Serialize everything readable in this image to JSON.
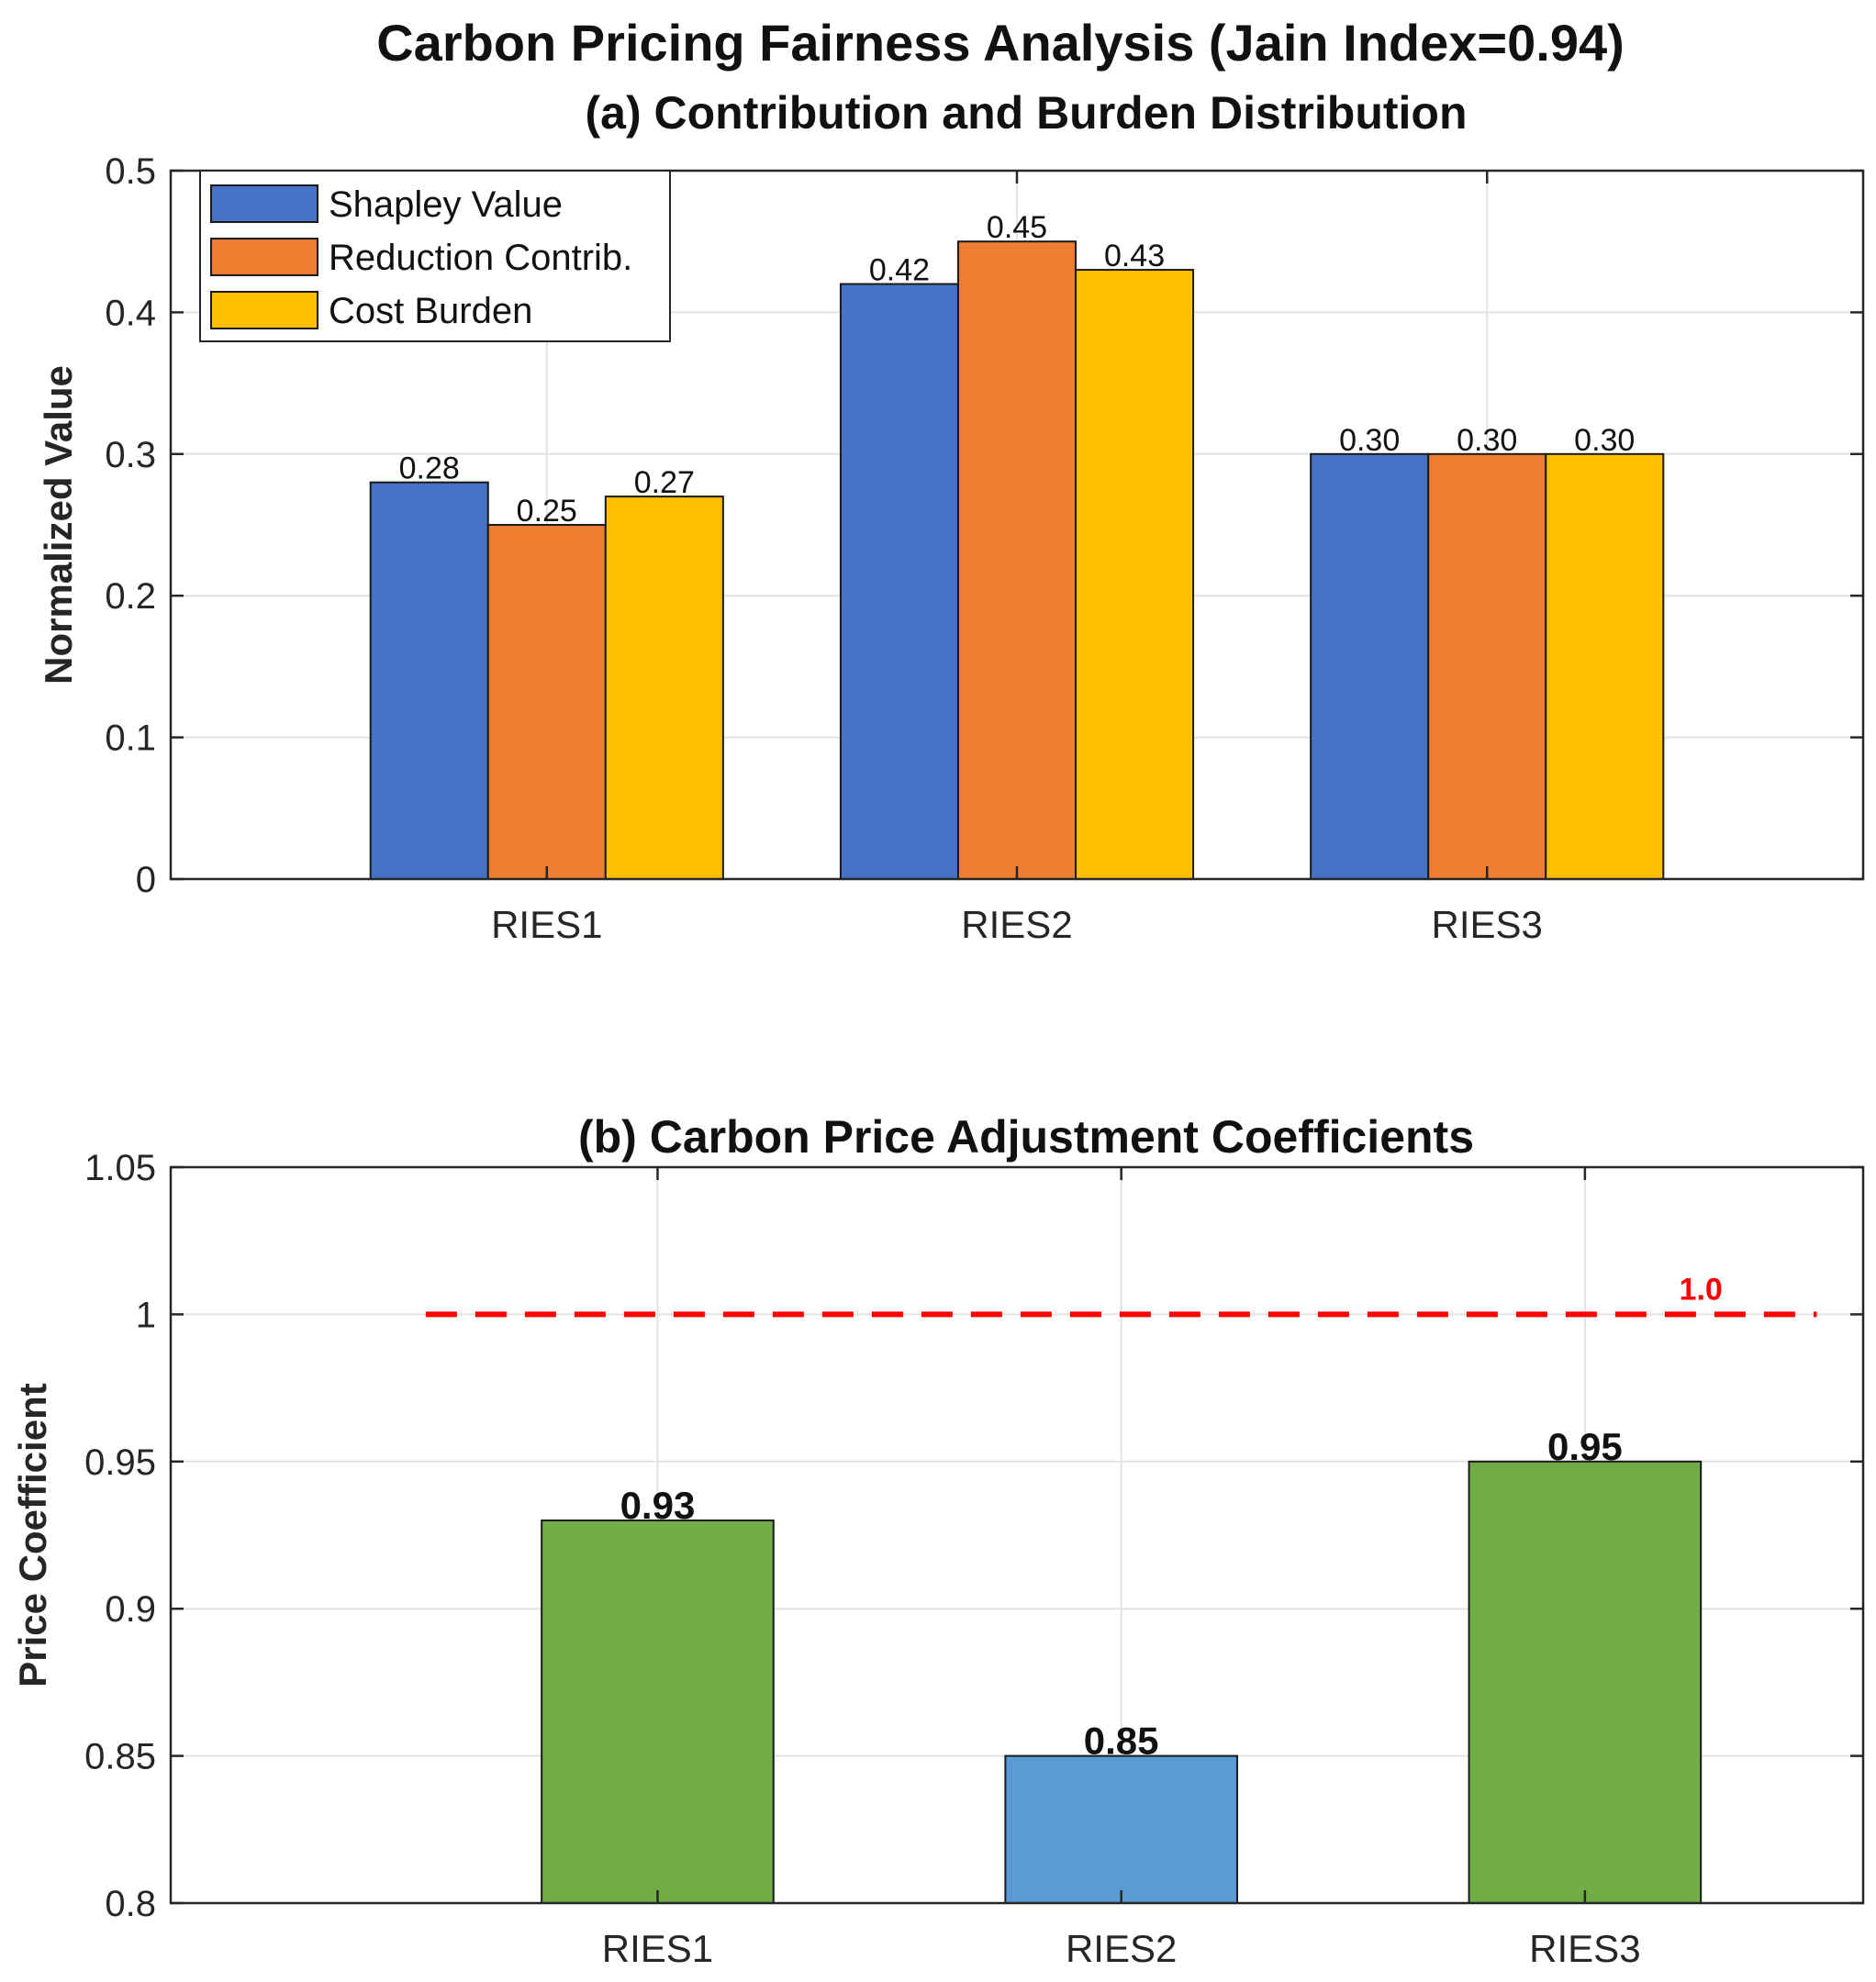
{
  "figure_title": "Carbon Pricing Fairness Analysis (Jain Index=0.94)",
  "chart_data": [
    {
      "type": "bar",
      "title": "(a) Contribution and Burden Distribution",
      "xlabel": "",
      "ylabel": "Normalized Value",
      "categories": [
        "RIES1",
        "RIES2",
        "RIES3"
      ],
      "ylim": [
        0,
        0.5
      ],
      "yticks": [
        0,
        0.1,
        0.2,
        0.3,
        0.4,
        0.5
      ],
      "ytick_labels": [
        "0",
        "0.1",
        "0.2",
        "0.3",
        "0.4",
        "0.5"
      ],
      "grid": true,
      "legend_position": "top-left",
      "series": [
        {
          "name": "Shapley Value",
          "color": "#4472C4",
          "values": [
            0.28,
            0.42,
            0.3
          ],
          "labels": [
            "0.28",
            "0.42",
            "0.30"
          ]
        },
        {
          "name": "Reduction Contrib.",
          "color": "#ED7D31",
          "values": [
            0.25,
            0.45,
            0.3
          ],
          "labels": [
            "0.25",
            "0.45",
            "0.30"
          ]
        },
        {
          "name": "Cost Burden",
          "color": "#FFC000",
          "values": [
            0.27,
            0.43,
            0.3
          ],
          "labels": [
            "0.27",
            "0.43",
            "0.30"
          ]
        }
      ]
    },
    {
      "type": "bar",
      "title": "(b) Carbon Price Adjustment Coefficients",
      "xlabel": "",
      "ylabel": "Price Coefficient",
      "categories": [
        "RIES1",
        "RIES2",
        "RIES3"
      ],
      "ylim": [
        0.8,
        1.05
      ],
      "yticks": [
        0.8,
        0.85,
        0.9,
        0.95,
        1.0,
        1.05
      ],
      "ytick_labels": [
        "0.8",
        "0.85",
        "0.9",
        "0.95",
        "1",
        "1.05"
      ],
      "grid": true,
      "values": [
        0.93,
        0.85,
        0.95
      ],
      "labels": [
        "0.93",
        "0.85",
        "0.95"
      ],
      "colors": [
        "#70AD47",
        "#5B9BD5",
        "#70AD47"
      ],
      "reference_line": {
        "value": 1.0,
        "label": "1.0",
        "color": "#FF0000",
        "style": "dashed",
        "x_start": 0.5,
        "x_end": 3.5
      }
    }
  ]
}
